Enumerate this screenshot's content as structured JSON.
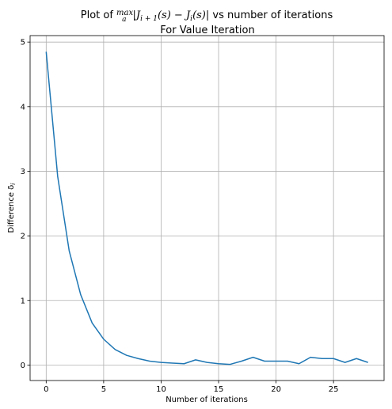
{
  "chart_data": {
    "type": "line",
    "title": {
      "line1_prefix": "Plot of ",
      "line1_max": "max",
      "line1_sub": "a",
      "line1_expr": "|J",
      "line1_expr_sub": "i + 1",
      "line1_expr_rest": "(s) − J",
      "line1_expr_sub2": "i",
      "line1_expr_end": "(s)|",
      "line1_suffix": " vs number of iterations",
      "line2": "For Value Iteration"
    },
    "xlabel": "Number of iterations",
    "ylabel": "Difference δ",
    "ylabel_sub": "i",
    "xlim": [
      -1.4,
      29.4
    ],
    "ylim": [
      -0.24,
      5.1
    ],
    "xticks": [
      0,
      5,
      10,
      15,
      20,
      25
    ],
    "yticks": [
      0,
      1,
      2,
      3,
      4,
      5
    ],
    "grid": true,
    "line_color": "#1f77b4",
    "series": [
      {
        "x": [
          0,
          1,
          2,
          3,
          4,
          5,
          6,
          7,
          8,
          9,
          10,
          11,
          12,
          13,
          14,
          15,
          16,
          17,
          18,
          19,
          20,
          21,
          22,
          23,
          24,
          25,
          26,
          27,
          28
        ],
        "values": [
          4.85,
          2.92,
          1.77,
          1.09,
          0.65,
          0.4,
          0.24,
          0.15,
          0.1,
          0.06,
          0.04,
          0.03,
          0.02,
          0.08,
          0.04,
          0.02,
          0.01,
          0.06,
          0.12,
          0.06,
          0.06,
          0.06,
          0.02,
          0.12,
          0.1,
          0.1,
          0.04,
          0.1,
          0.04
        ]
      }
    ]
  }
}
